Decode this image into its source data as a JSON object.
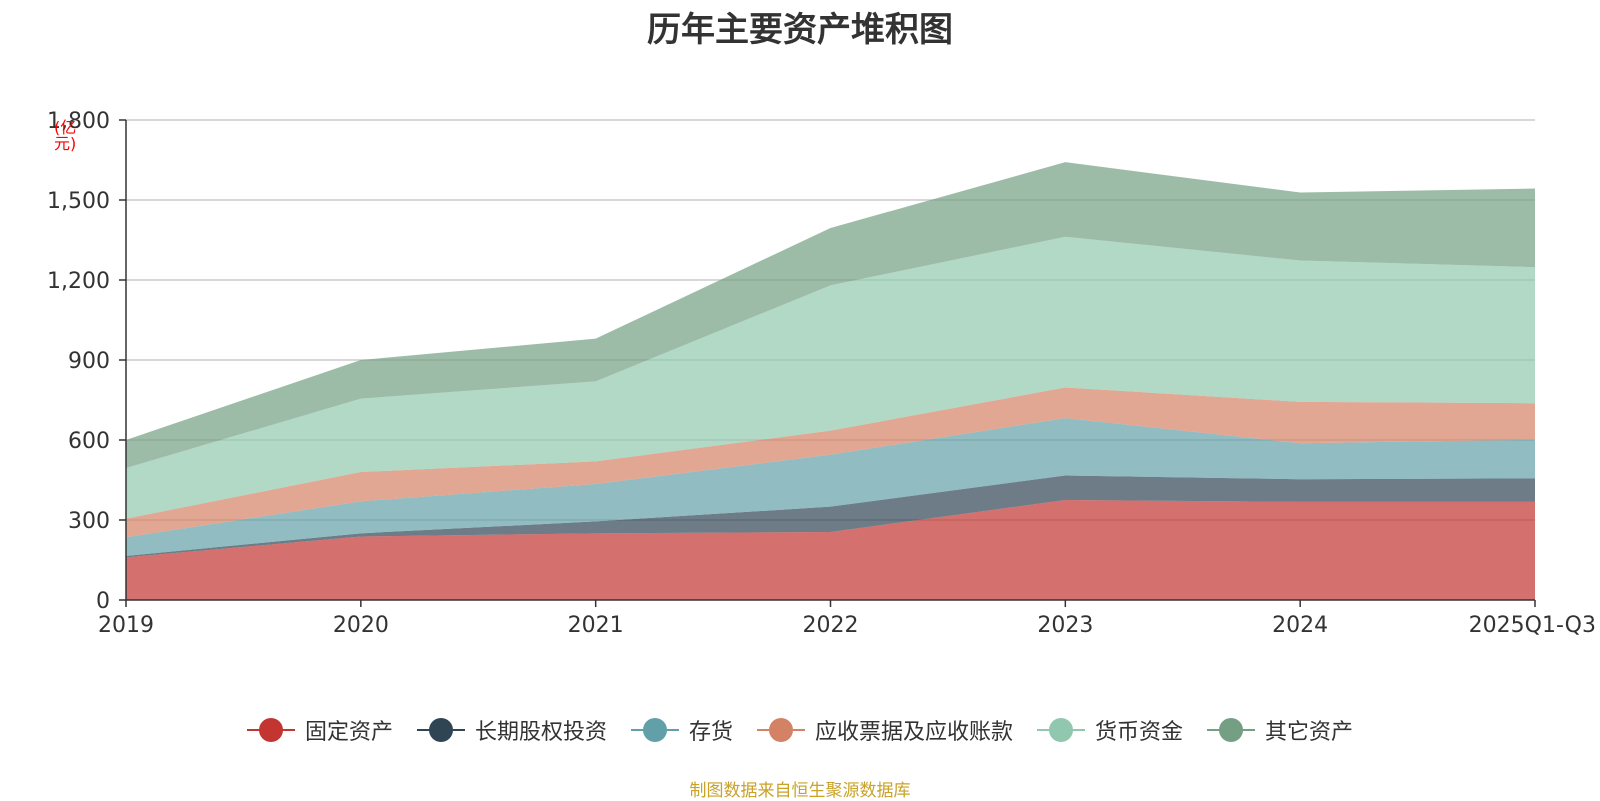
{
  "chart_data": {
    "type": "area",
    "stacked": true,
    "title": "历年主要资产堆积图",
    "ylabel": "(亿元)",
    "xlabel": "",
    "categories": [
      "2019",
      "2020",
      "2021",
      "2022",
      "2023",
      "2024",
      "2025Q1-Q3"
    ],
    "ylim": [
      0,
      1800
    ],
    "yticks": [
      "0",
      "300",
      "600",
      "900",
      "1,200",
      "1,500",
      "1,800"
    ],
    "ytick_values": [
      0,
      300,
      600,
      900,
      1200,
      1500,
      1800
    ],
    "grid": true,
    "legend_position": "bottom",
    "series": [
      {
        "name": "固定资产",
        "color": "#c23531",
        "values": [
          160,
          238,
          250,
          255,
          375,
          368,
          368
        ]
      },
      {
        "name": "长期股权投资",
        "color": "#2f4554",
        "values": [
          5,
          12,
          45,
          95,
          92,
          85,
          88
        ]
      },
      {
        "name": "存货",
        "color": "#61a0a8",
        "values": [
          70,
          120,
          140,
          195,
          215,
          135,
          145
        ]
      },
      {
        "name": "应收票据及应收账款",
        "color": "#d48265",
        "values": [
          70,
          110,
          85,
          90,
          115,
          155,
          137
        ]
      },
      {
        "name": "货币资金",
        "color": "#91c7ae",
        "values": [
          190,
          275,
          300,
          545,
          565,
          530,
          510
        ]
      },
      {
        "name": "其它资产",
        "color": "#749f83",
        "values": [
          105,
          145,
          160,
          215,
          280,
          255,
          295
        ]
      }
    ]
  },
  "source": "制图数据来自恒生聚源数据库",
  "source_color": "#c9a227",
  "ylabel_color": "#ff0000"
}
